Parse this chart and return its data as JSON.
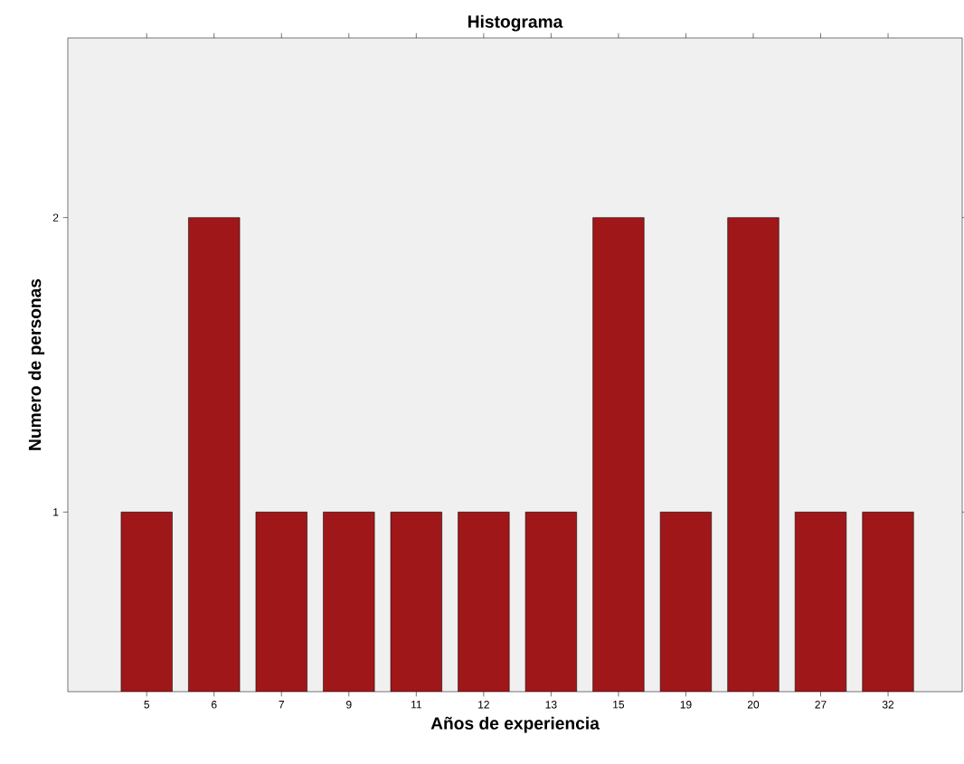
{
  "chart_data": {
    "type": "bar",
    "title": "Histograma",
    "xlabel": "Años de experiencia",
    "ylabel": "Numero de personas",
    "categories": [
      "5",
      "6",
      "7",
      "9",
      "11",
      "12",
      "13",
      "15",
      "19",
      "20",
      "27",
      "32"
    ],
    "values": [
      1,
      2,
      1,
      1,
      1,
      1,
      1,
      2,
      1,
      2,
      1,
      1
    ],
    "color": "#a0171a",
    "ylim": [
      0.39,
      2.61
    ],
    "yticks": [
      1,
      2
    ]
  }
}
